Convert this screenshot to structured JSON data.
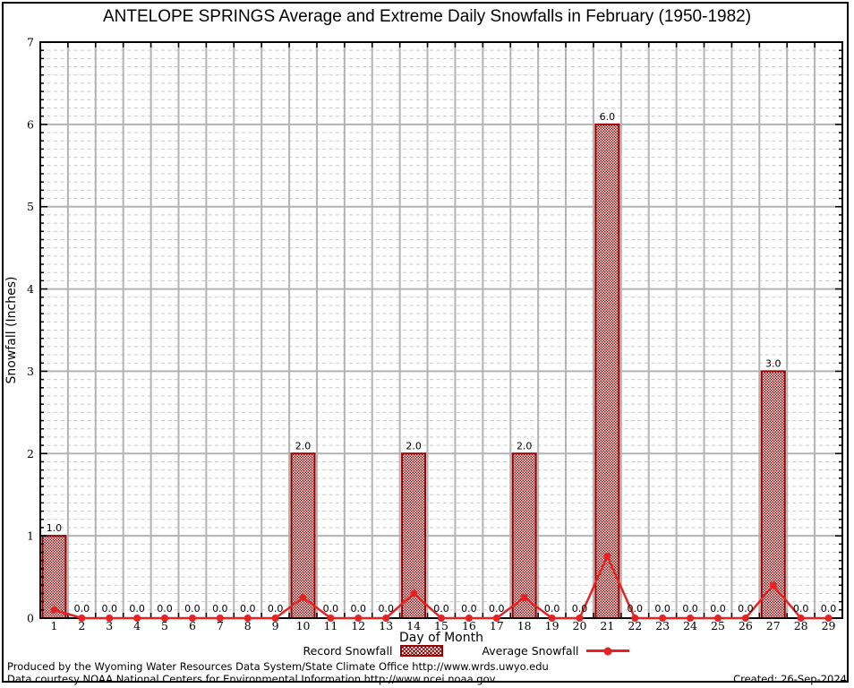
{
  "chart_data": {
    "type": "bar",
    "title": "ANTELOPE SPRINGS Average and Extreme Daily Snowfalls in February (1950-1982)",
    "xlabel": "Day of Month",
    "ylabel": "Snowfall (Inches)",
    "x": [
      1,
      2,
      3,
      4,
      5,
      6,
      7,
      8,
      9,
      10,
      11,
      12,
      13,
      14,
      15,
      16,
      17,
      18,
      19,
      20,
      21,
      22,
      23,
      24,
      25,
      26,
      27,
      28,
      29
    ],
    "ylim": [
      0,
      7
    ],
    "yticks": [
      0,
      1,
      2,
      3,
      4,
      5,
      6,
      7
    ],
    "y_minor_step": 0.1,
    "grid": "major-solid, minor-dashed-horizontal",
    "legend_position": "bottom",
    "bar_value_labels": "one-decimal",
    "series": [
      {
        "name": "Record Snowfall",
        "type": "bar",
        "color": "#990000",
        "values": [
          1,
          0,
          0,
          0,
          0,
          0,
          0,
          0,
          0,
          2,
          0,
          0,
          0,
          2,
          0,
          0,
          0,
          2,
          0,
          0,
          6,
          0,
          0,
          0,
          0,
          0,
          3,
          0,
          0
        ]
      },
      {
        "name": "Average Snowfall",
        "type": "line",
        "color": "#e62222",
        "values": [
          0.1,
          0,
          0,
          0,
          0,
          0,
          0,
          0,
          0,
          0.25,
          0,
          0,
          0,
          0.3,
          0,
          0,
          0,
          0.25,
          0,
          0,
          0.75,
          0,
          0,
          0,
          0,
          0,
          0.4,
          0,
          0
        ]
      }
    ]
  },
  "footer": {
    "line1": "Produced by the Wyoming Water Resources Data System/State Climate Office http://www.wrds.uwyo.edu",
    "line2": "Data courtesy NOAA National Centers for Environmental Information http://www.ncei.noaa.gov",
    "created": "Created: 26-Sep-2024"
  },
  "colors": {
    "bar": "#990000",
    "line": "#e62222",
    "grid_major": "#b3b3b3",
    "grid_minor": "#c9c9c9",
    "axis": "#000000",
    "background": "#ffffff"
  }
}
